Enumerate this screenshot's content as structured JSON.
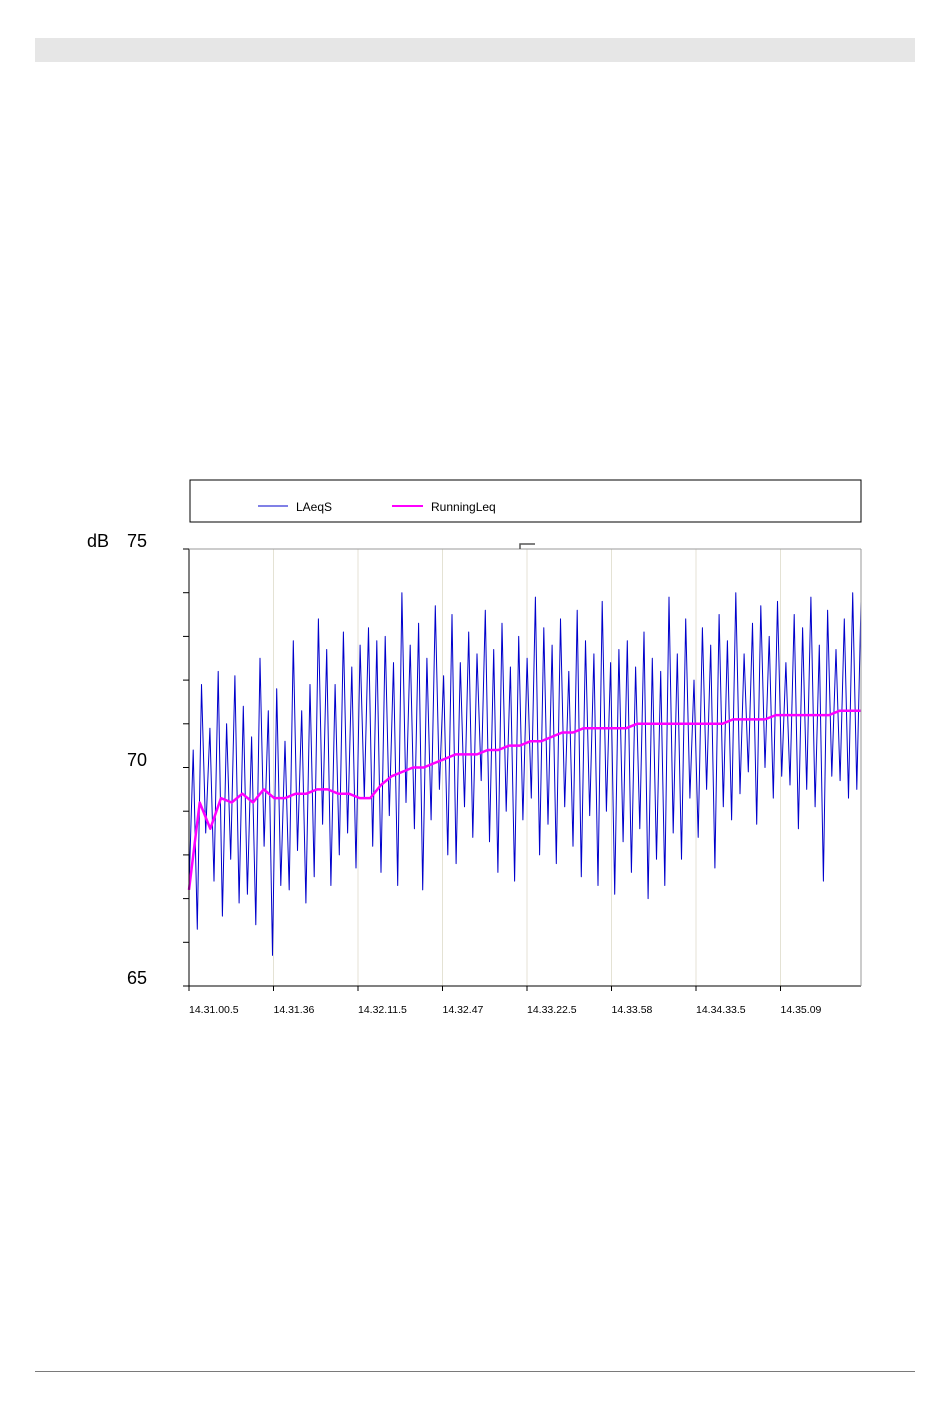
{
  "chart_data": {
    "type": "line",
    "ylabel": "dB",
    "ylim": [
      65,
      75
    ],
    "y_ticks": [
      65,
      70,
      75
    ],
    "x_tick_labels": [
      "14.31.00.5",
      "14.31.36",
      "14.32.11.5",
      "14.32.47",
      "14.33.22.5",
      "14.33.58",
      "14.34.33.5",
      "14.35.09"
    ],
    "x_range_seconds_of_span": [
      0,
      287
    ],
    "legend_position": "top",
    "grid": "vertical",
    "series": [
      {
        "name": "LAeqS",
        "color": "#0000cc",
        "description_values_start": [
          67.2,
          70.4,
          66.3,
          71.9,
          68.5,
          70.9,
          67.4,
          72.2,
          66.6,
          71.0,
          67.9,
          72.1,
          66.9,
          71.4,
          67.1,
          70.7,
          66.4,
          72.5,
          68.2,
          71.3,
          65.7,
          71.8,
          67.3,
          70.6,
          67.2,
          72.9,
          68.1,
          71.3,
          66.9,
          71.9,
          67.5,
          73.4,
          68.7,
          72.7,
          67.3,
          71.9
        ],
        "values": [
          67.2,
          70.4,
          66.3,
          71.9,
          68.5,
          70.9,
          67.4,
          72.2,
          66.6,
          71.0,
          67.9,
          72.1,
          66.9,
          71.4,
          67.1,
          70.7,
          66.4,
          72.5,
          68.2,
          71.3,
          65.7,
          71.8,
          67.3,
          70.6,
          67.2,
          72.9,
          68.1,
          71.3,
          66.9,
          71.9,
          67.5,
          73.4,
          68.7,
          72.7,
          67.3,
          71.9,
          68.0,
          73.1,
          68.5,
          72.3,
          67.7,
          72.8,
          69.3,
          73.2,
          68.2,
          72.9,
          67.6,
          73.0,
          68.9,
          72.4,
          67.3,
          74.0,
          69.2,
          72.8,
          68.6,
          73.3,
          67.2,
          72.5,
          68.8,
          73.7,
          69.5,
          72.1,
          68.0,
          73.5,
          67.8,
          72.4,
          69.1,
          73.1,
          68.4,
          72.6,
          69.7,
          73.6,
          68.3,
          72.7,
          67.6,
          73.3,
          69.0,
          72.3,
          67.4,
          73.0,
          68.8,
          72.5,
          69.3,
          73.9,
          68.0,
          73.2,
          68.7,
          72.8,
          67.8,
          73.4,
          69.1,
          72.2,
          68.2,
          73.6,
          67.5,
          72.9,
          68.9,
          72.6,
          67.3,
          73.8,
          69.0,
          72.4,
          67.1,
          72.7,
          68.3,
          72.9,
          67.6,
          72.3,
          68.6,
          73.1,
          67.0,
          72.5,
          67.9,
          72.2,
          67.3,
          73.9,
          68.5,
          72.6,
          67.9,
          73.4,
          69.3,
          72.0,
          68.4,
          73.2,
          69.5,
          72.8,
          67.7,
          73.5,
          69.1,
          72.9,
          68.8,
          74.0,
          69.4,
          72.6,
          69.9,
          73.3,
          68.7,
          73.7,
          70.0,
          73.0,
          69.3,
          73.8,
          69.8,
          72.4,
          69.6,
          73.5,
          68.6,
          73.2,
          69.5,
          73.9,
          69.1,
          72.8,
          67.4,
          73.6,
          69.8,
          72.7,
          69.7,
          73.4,
          69.3,
          74.0,
          69.5,
          73.8
        ],
        "visible": true
      },
      {
        "name": "RunningLeq",
        "color": "#ff00ff",
        "values": [
          67.2,
          69.2,
          68.6,
          69.3,
          69.2,
          69.4,
          69.2,
          69.5,
          69.3,
          69.3,
          69.4,
          69.4,
          69.5,
          69.5,
          69.4,
          69.4,
          69.3,
          69.3,
          69.6,
          69.8,
          69.9,
          70.0,
          70.0,
          70.1,
          70.2,
          70.3,
          70.3,
          70.3,
          70.4,
          70.4,
          70.5,
          70.5,
          70.6,
          70.6,
          70.7,
          70.8,
          70.8,
          70.9,
          70.9,
          70.9,
          70.9,
          70.9,
          71.0,
          71.0,
          71.0,
          71.0,
          71.0,
          71.0,
          71.0,
          71.0,
          71.0,
          71.1,
          71.1,
          71.1,
          71.1,
          71.2,
          71.2,
          71.2,
          71.2,
          71.2,
          71.2,
          71.3,
          71.3,
          71.3
        ]
      }
    ]
  }
}
